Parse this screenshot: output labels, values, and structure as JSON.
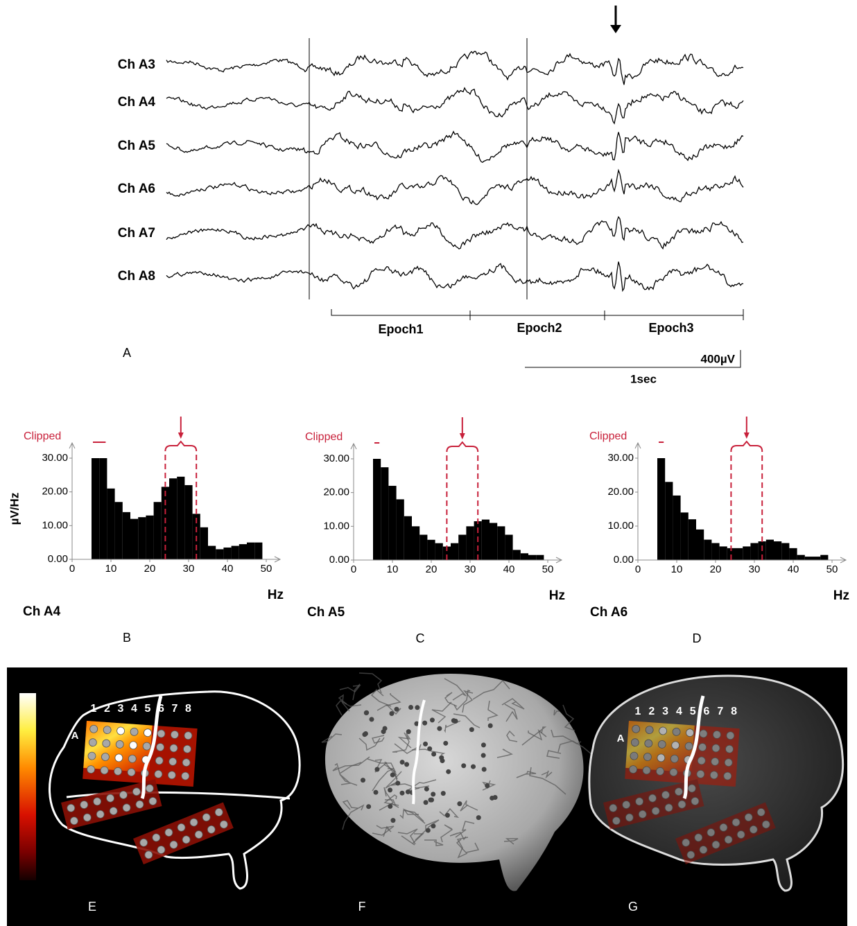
{
  "eeg": {
    "channels": [
      "Ch A3",
      "Ch A4",
      "Ch A5",
      "Ch A6",
      "Ch A7",
      "Ch A8"
    ],
    "epochs": [
      "Epoch1",
      "Epoch2",
      "Epoch3"
    ],
    "panel": "A",
    "amplitude_scale": "400µV",
    "time_scale": "1sec"
  },
  "chart_data": [
    {
      "type": "histogram",
      "panel": "B",
      "channel": "Ch A4",
      "ylabel": "µV/Hz",
      "xlabel": "Hz",
      "clipped_label": "Clipped",
      "bins": [
        5,
        7,
        9,
        11,
        13,
        15,
        17,
        19,
        21,
        23,
        25,
        27,
        29,
        31,
        33,
        35,
        37,
        39,
        41,
        43,
        45,
        47,
        49
      ],
      "values": [
        30,
        30,
        21,
        17,
        14,
        12,
        12.5,
        13,
        17,
        21.5,
        24,
        24.5,
        22,
        13.5,
        9.5,
        4,
        3,
        3.5,
        4,
        4.5,
        5,
        5
      ],
      "color": "#000000",
      "highlight_color": "#c8203a",
      "band": [
        24,
        32
      ],
      "xlim": [
        0,
        50
      ],
      "ylim": [
        0,
        30
      ],
      "xticks": [
        0,
        10,
        20,
        30,
        40,
        50
      ],
      "yticks": [
        {
          "value": 0,
          "label": "0.00"
        },
        {
          "value": 10,
          "label": "10.00"
        },
        {
          "value": 20,
          "label": "20.00"
        },
        {
          "value": 30,
          "label": "30.00"
        }
      ]
    },
    {
      "type": "histogram",
      "panel": "C",
      "channel": "Ch A5",
      "xlabel": "Hz",
      "clipped_label": "Clipped",
      "bins": [
        5,
        7,
        9,
        11,
        13,
        15,
        17,
        19,
        21,
        23,
        25,
        27,
        29,
        31,
        33,
        35,
        37,
        39,
        41,
        43,
        45,
        47,
        49
      ],
      "values": [
        30,
        27.5,
        22,
        18,
        13,
        10,
        7.5,
        6,
        5,
        4,
        5,
        7.5,
        10,
        11.5,
        12,
        11,
        10,
        7.5,
        3,
        2,
        1.5,
        1.5
      ],
      "color": "#000000",
      "highlight_color": "#c8203a",
      "band": [
        24,
        32
      ],
      "xlim": [
        0,
        50
      ],
      "ylim": [
        0,
        30
      ],
      "xticks": [
        0,
        10,
        20,
        30,
        40,
        50
      ],
      "yticks": [
        {
          "value": 0,
          "label": "0.00"
        },
        {
          "value": 10,
          "label": "10.00"
        },
        {
          "value": 20,
          "label": "20.00"
        },
        {
          "value": 30,
          "label": "30.00"
        }
      ]
    },
    {
      "type": "histogram",
      "panel": "D",
      "channel": "Ch A6",
      "xlabel": "Hz",
      "clipped_label": "Clipped",
      "bins": [
        5,
        7,
        9,
        11,
        13,
        15,
        17,
        19,
        21,
        23,
        25,
        27,
        29,
        31,
        33,
        35,
        37,
        39,
        41,
        43,
        45,
        47,
        49
      ],
      "values": [
        30,
        23,
        19,
        14,
        12,
        9,
        6,
        5,
        4,
        3.5,
        3.5,
        4,
        5,
        5.5,
        6,
        5.5,
        5,
        3.5,
        1.5,
        1,
        1,
        1.5
      ],
      "color": "#000000",
      "highlight_color": "#c8203a",
      "band": [
        24,
        32
      ],
      "xlim": [
        0,
        50
      ],
      "ylim": [
        0,
        30
      ],
      "xticks": [
        0,
        10,
        20,
        30,
        40,
        50
      ],
      "yticks": [
        {
          "value": 0,
          "label": "0.00"
        },
        {
          "value": 10,
          "label": "10.00"
        },
        {
          "value": 20,
          "label": "20.00"
        },
        {
          "value": 30,
          "label": "30.00"
        }
      ]
    }
  ],
  "maps": {
    "panels": [
      "E",
      "F",
      "G"
    ],
    "electrode_columns": [
      "1",
      "2",
      "3",
      "4",
      "5",
      "6",
      "7",
      "8"
    ],
    "row_label": "A"
  }
}
